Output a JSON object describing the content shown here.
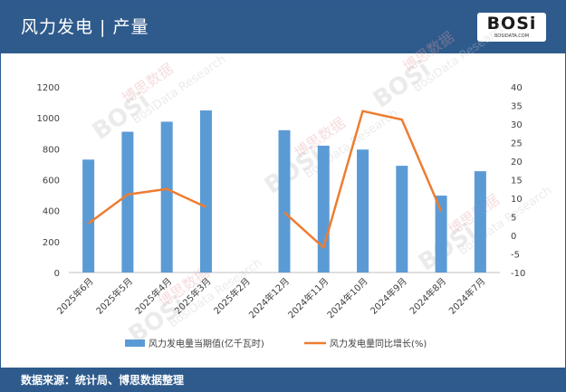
{
  "header": {
    "title": "风力发电 | 产量"
  },
  "logo": {
    "text": "BOSi",
    "sub": "BOSIDATA.COM"
  },
  "watermark": {
    "cn": "博思数据",
    "en": "BosiData Research",
    "brand": "BOSi"
  },
  "footer": {
    "source": "数据来源：统计局、博思数据整理"
  },
  "chart_data": {
    "type": "bar",
    "categories": [
      "2025年6月",
      "2025年5月",
      "2025年4月",
      "2025年3月",
      "2025年2月",
      "2024年12月",
      "2024年11月",
      "2024年10月",
      "2024年9月",
      "2024年8月",
      "2024年7月"
    ],
    "series": [
      {
        "name": "风力发电量当期值(亿千瓦时)",
        "type": "bar",
        "axis": "left",
        "color": "#5b9bd5",
        "values": [
          730,
          910,
          975,
          1048,
          null,
          920,
          820,
          795,
          690,
          497,
          655
        ]
      },
      {
        "name": "风力发电量同比增长(%)",
        "type": "line",
        "axis": "right",
        "color": "#ed7d31",
        "values": [
          3.2,
          11,
          12.5,
          7.6,
          null,
          6.2,
          -3.3,
          33.5,
          31.2,
          6.5,
          null
        ]
      }
    ],
    "y_left": {
      "min": 0,
      "max": 1200,
      "ticks": [
        "0",
        "200",
        "400",
        "600",
        "800",
        "1000",
        "1200"
      ]
    },
    "y_right": {
      "min": -10,
      "max": 40,
      "ticks": [
        "-10",
        "-5",
        "0",
        "5",
        "10",
        "15",
        "20",
        "25",
        "30",
        "35",
        "40"
      ]
    },
    "grid": false,
    "legend": "bottom"
  }
}
